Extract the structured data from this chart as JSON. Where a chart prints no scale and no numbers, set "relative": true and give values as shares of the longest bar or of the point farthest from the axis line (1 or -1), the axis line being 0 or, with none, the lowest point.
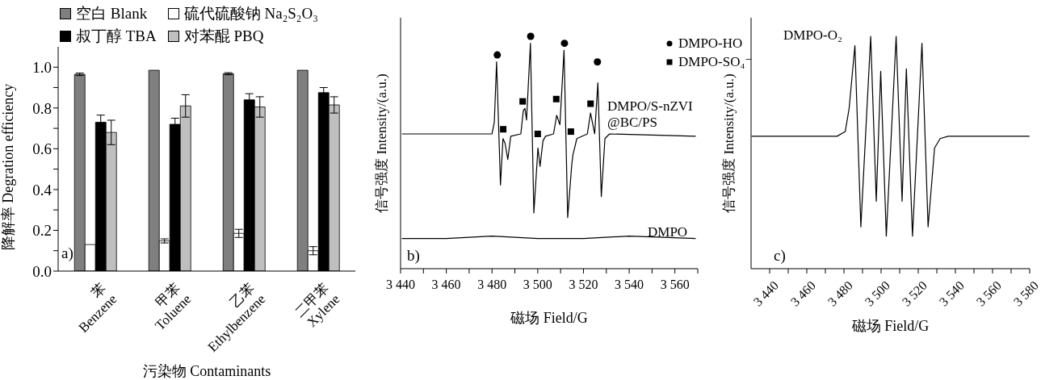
{
  "chart_data": [
    {
      "type": "bar",
      "xlabel": "污染物 Contaminants",
      "ylabel": "降解率 Degration efficiency",
      "legend": "top",
      "annotations": [
        "a)"
      ],
      "categories": [
        "苯\nBenzene",
        "甲苯\nToluene",
        "乙苯\nEthylbenzene",
        "二甲苯\nXylene"
      ],
      "ylim": [
        0,
        1.1
      ],
      "yticks": [
        {
          "value": 0,
          "label": "0.0"
        },
        {
          "value": 0.1,
          "label": null
        },
        0.2,
        {
          "value": 0.3,
          "label": null
        },
        0.4,
        {
          "value": 0.5,
          "label": null
        },
        0.6,
        {
          "value": 0.7,
          "label": null
        },
        0.8,
        {
          "value": 0.9,
          "label": null
        },
        {
          "value": 1,
          "label": "1.0"
        }
      ],
      "series": [
        {
          "name": "空白 Blank",
          "color": "#7f7f7f",
          "values": [
            0.965,
            0.985,
            0.968,
            0.985
          ],
          "errors": [
            0.006,
            null,
            0.005,
            null
          ]
        },
        {
          "name": "硫代硫酸钠 Na₂S₂O₃",
          "color": "#ffffff",
          "values": [
            0.13,
            0.148,
            0.185,
            0.1
          ],
          "errors": [
            null,
            0.01,
            0.02,
            0.02
          ]
        },
        {
          "name": "叔丁醇 TBA",
          "color": "#000000",
          "values": [
            0.73,
            0.72,
            0.84,
            0.875
          ],
          "errors": [
            0.035,
            0.03,
            0.03,
            0.025
          ]
        },
        {
          "name": "对苯醌 PBQ",
          "color": "#bfbfbf",
          "values": [
            0.68,
            0.81,
            0.805,
            0.815
          ],
          "errors": [
            0.06,
            0.055,
            0.05,
            0.04
          ]
        }
      ]
    },
    {
      "type": "line",
      "xlabel": "磁场 Field/G",
      "ylabel": "信号强度 Intensity/(a.u.)",
      "relative": true,
      "legend": "top right",
      "annotations": [
        "b)"
      ],
      "xlim": [
        3440,
        3570
      ],
      "xticks": [
        {
          "value": 3440,
          "label": "3 440"
        },
        {
          "value": 3450,
          "label": null
        },
        {
          "value": 3460,
          "label": "3 460"
        },
        {
          "value": 3470,
          "label": null
        },
        {
          "value": 3480,
          "label": "3 480"
        },
        {
          "value": 3490,
          "label": null
        },
        {
          "value": 3500,
          "label": "3 500"
        },
        {
          "value": 3510,
          "label": null
        },
        {
          "value": 3520,
          "label": "3 520"
        },
        {
          "value": 3530,
          "label": null
        },
        {
          "value": 3540,
          "label": "3 540"
        },
        {
          "value": 3550,
          "label": null
        },
        {
          "value": 3560,
          "label": "3 560"
        },
        {
          "value": 3570,
          "label": null
        }
      ],
      "series": [
        {
          "name": "DMPO/S-nZVI\n@BC/PS",
          "color": "#000000",
          "x": [
            3440.6,
            3480,
            3481,
            3482,
            3483.7,
            3484.8,
            3485.7,
            3486.9,
            3488.2,
            3492.6,
            3493.7,
            3494.4,
            3495.1,
            3496.8,
            3498.3,
            3500.1,
            3501,
            3502.3,
            3503.4,
            3506.9,
            3508.3,
            3509.7,
            3511.5,
            3513.1,
            3514.9,
            3515.4,
            3517.1,
            3521.7,
            3523.1,
            3524.9,
            3526.3,
            3527.8,
            3529.4,
            3531.4,
            3569.1
          ],
          "values": [
            0.58,
            0.58,
            0.63,
            0.89,
            0.36,
            0.56,
            0.54,
            0.47,
            0.57,
            0.58,
            0.68,
            0.69,
            0.64,
            0.97,
            0.24,
            0.52,
            0.44,
            0.55,
            0.57,
            0.58,
            0.66,
            0.62,
            0.94,
            0.22,
            0.45,
            0.49,
            0.56,
            0.58,
            0.67,
            0.58,
            0.8,
            0.31,
            0.56,
            0.58,
            0.57
          ]
        },
        {
          "name": "DMPO",
          "color": "#000000",
          "x": [
            3440.6,
            3460,
            3480,
            3500,
            3520,
            3540,
            3569.1
          ],
          "values": [
            0.13,
            0.13,
            0.14,
            0.13,
            0.13,
            0.14,
            0.13
          ]
        },
        {
          "type": "scatter",
          "marker": "circle",
          "name": "DMPO-HO",
          "color": "#000000",
          "x": [
            3482.3,
            3496.9,
            3511.7,
            3526.1
          ],
          "values": [
            0.92,
            1,
            0.97,
            0.89
          ]
        },
        {
          "type": "scatter",
          "marker": "square",
          "name": "DMPO-SO₄⁻",
          "color": "#000000",
          "x": [
            3484.9,
            3493.4,
            3500,
            3508.1,
            3514.5,
            3523.1
          ],
          "values": [
            0.6,
            0.72,
            0.58,
            0.73,
            0.59,
            0.71
          ]
        }
      ]
    },
    {
      "type": "line",
      "xlabel": "磁场 Field/G",
      "ylabel": "信号强度 Intensity/(a.u.)",
      "relative": true,
      "annotations": [
        "c)"
      ],
      "xlim": [
        3430,
        3580
      ],
      "xticks": [
        {
          "value": 3440,
          "label": "3 440"
        },
        {
          "value": 3450,
          "label": null
        },
        {
          "value": 3460,
          "label": "3 460"
        },
        {
          "value": 3470,
          "label": null
        },
        {
          "value": 3480,
          "label": "3 480"
        },
        {
          "value": 3490,
          "label": null
        },
        {
          "value": 3500,
          "label": "3 500"
        },
        {
          "value": 3510,
          "label": null
        },
        {
          "value": 3520,
          "label": "3 520"
        },
        {
          "value": 3530,
          "label": null
        },
        {
          "value": 3540,
          "label": "3 540"
        },
        {
          "value": 3550,
          "label": null
        },
        {
          "value": 3560,
          "label": "3 560"
        },
        {
          "value": 3570,
          "label": null
        },
        {
          "value": 3580,
          "label": "3 580"
        }
      ],
      "series": [
        {
          "name": "DMPO-O₂",
          "color": "#000000",
          "x": [
            3430.3,
            3476.3,
            3480.7,
            3482.8,
            3485.9,
            3489.1,
            3494.4,
            3497.4,
            3499.8,
            3502.8,
            3508.1,
            3511.3,
            3513.6,
            3516.9,
            3522,
            3525.3,
            3528.8,
            3531.8,
            3536.1,
            3579.9
          ],
          "values": [
            0.57,
            0.57,
            0.59,
            0.69,
            0.96,
            0.18,
            1,
            0.29,
            0.85,
            0.14,
            1,
            0.29,
            0.86,
            0.14,
            0.97,
            0.18,
            0.52,
            0.56,
            0.57,
            0.57
          ]
        }
      ]
    }
  ]
}
